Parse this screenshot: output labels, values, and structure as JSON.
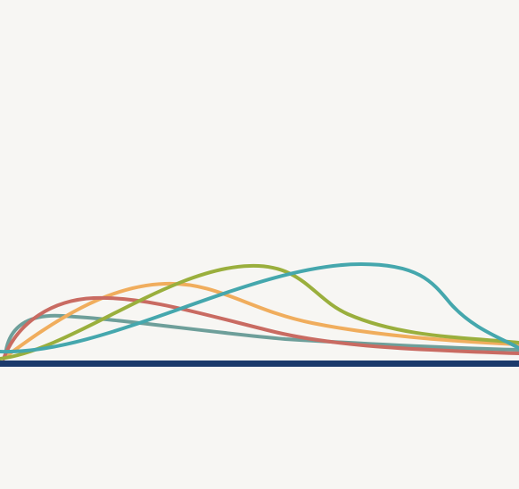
{
  "background": "#f7f6f3",
  "baseline": {
    "name": "baseline-bar",
    "color": "#1b3a6b"
  },
  "curves": [
    {
      "name": "curve-slate",
      "color": "#6e9f9a"
    },
    {
      "name": "curve-orange",
      "color": "#f0ad5d"
    },
    {
      "name": "curve-red",
      "color": "#c96b62"
    },
    {
      "name": "curve-olive",
      "color": "#9aaf3d"
    },
    {
      "name": "curve-teal",
      "color": "#45a7ad"
    }
  ]
}
